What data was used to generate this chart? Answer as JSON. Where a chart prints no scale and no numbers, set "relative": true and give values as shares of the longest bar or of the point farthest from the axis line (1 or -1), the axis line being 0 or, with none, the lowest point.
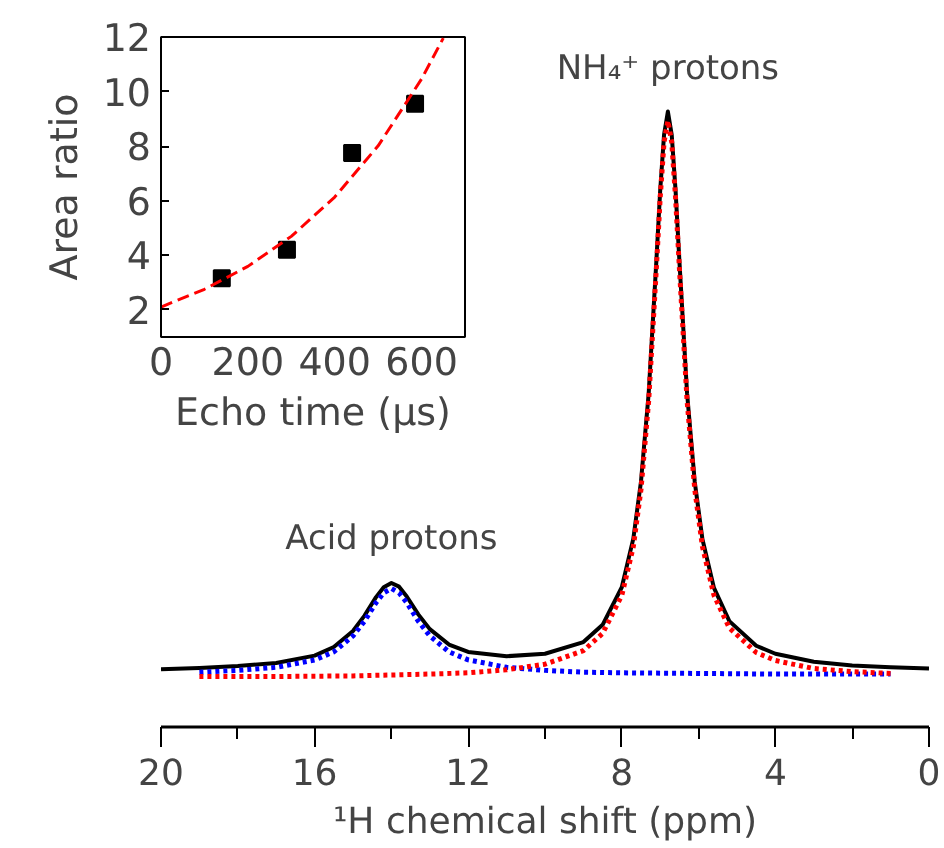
{
  "chart_data": [
    {
      "type": "line",
      "xlabel": "¹H chemical shift (ppm)",
      "relative": true,
      "xlim": [
        20,
        0
      ],
      "xticks": [
        20,
        {
          "value": 18,
          "label": null
        },
        16,
        {
          "value": 14,
          "label": null
        },
        12,
        {
          "value": 10,
          "label": null
        },
        8,
        {
          "value": 6,
          "label": null
        },
        4,
        {
          "value": 2,
          "label": null
        },
        0
      ],
      "tick_labels": "x",
      "grid": false,
      "annotations": [
        {
          "text": "Acid protons",
          "x": 14,
          "y": 0.234
        },
        {
          "text": "NH₄⁺ protons",
          "x": 6.8,
          "y": 0.997
        }
      ],
      "series": [
        {
          "color": "#000000",
          "line_style": "solid",
          "x": [
            20,
            19,
            18,
            17,
            16,
            15.5,
            15,
            14.7,
            14.4,
            14.2,
            14,
            13.8,
            13.6,
            13.3,
            13,
            12.5,
            12,
            11,
            10,
            9,
            8.5,
            8,
            7.7,
            7.5,
            7.3,
            7.1,
            7.0,
            6.9,
            6.8,
            6.7,
            6.6,
            6.5,
            6.3,
            6.1,
            5.9,
            5.6,
            5.2,
            4.5,
            4,
            3,
            2,
            1,
            0
          ],
          "values": [
            0.094,
            0.096,
            0.099,
            0.104,
            0.116,
            0.13,
            0.156,
            0.181,
            0.211,
            0.227,
            0.234,
            0.228,
            0.212,
            0.183,
            0.159,
            0.134,
            0.122,
            0.115,
            0.119,
            0.138,
            0.166,
            0.227,
            0.306,
            0.399,
            0.542,
            0.757,
            0.872,
            0.962,
            1.0,
            0.962,
            0.872,
            0.757,
            0.542,
            0.398,
            0.305,
            0.226,
            0.172,
            0.132,
            0.119,
            0.106,
            0.1,
            0.097,
            0.095
          ]
        },
        {
          "color": "#0000ff",
          "line_style": "dotted",
          "x": [
            19,
            18,
            17,
            16,
            15.5,
            15,
            14.7,
            14.4,
            14.2,
            14,
            13.8,
            13.6,
            13.3,
            13,
            12.5,
            12,
            11,
            10,
            9,
            8,
            6,
            4,
            2,
            1
          ],
          "values": [
            0.089,
            0.092,
            0.097,
            0.109,
            0.122,
            0.148,
            0.172,
            0.202,
            0.218,
            0.225,
            0.218,
            0.202,
            0.172,
            0.148,
            0.122,
            0.109,
            0.097,
            0.092,
            0.089,
            0.088,
            0.087,
            0.086,
            0.086,
            0.086
          ]
        },
        {
          "color": "#ff0000",
          "line_style": "dotted",
          "x": [
            19,
            17,
            15,
            13,
            12,
            11,
            10,
            9,
            8.5,
            8,
            7.7,
            7.5,
            7.3,
            7.1,
            7.0,
            6.9,
            6.8,
            6.7,
            6.6,
            6.5,
            6.3,
            6.1,
            5.9,
            5.6,
            5.2,
            4.5,
            4,
            3,
            2,
            1
          ],
          "values": [
            0.082,
            0.082,
            0.083,
            0.086,
            0.088,
            0.093,
            0.102,
            0.124,
            0.152,
            0.214,
            0.293,
            0.386,
            0.53,
            0.745,
            0.86,
            0.95,
            0.985,
            0.95,
            0.86,
            0.745,
            0.53,
            0.386,
            0.293,
            0.214,
            0.161,
            0.121,
            0.108,
            0.095,
            0.09,
            0.087
          ]
        }
      ]
    },
    {
      "type": "scatter",
      "xlabel": "Echo time (μs)",
      "ylabel": "Area ratio",
      "xlim": [
        0,
        700
      ],
      "ylim": [
        1,
        12
      ],
      "xticks": [
        0,
        200,
        400,
        600
      ],
      "yticks": [
        2,
        4,
        6,
        8,
        10,
        12
      ],
      "grid": false,
      "series": [
        {
          "type": "scatter",
          "marker": "square",
          "color": "#000000",
          "x": [
            140,
            290,
            440,
            585
          ],
          "values": [
            3.15,
            4.2,
            7.75,
            9.55
          ]
        },
        {
          "type": "line",
          "line_style": "dashed",
          "color": "#ff0000",
          "x": [
            0,
            100,
            200,
            300,
            400,
            500,
            600,
            650
          ],
          "values": [
            2.1,
            2.75,
            3.59,
            4.69,
            6.13,
            8.01,
            10.46,
            11.96
          ]
        }
      ]
    }
  ]
}
